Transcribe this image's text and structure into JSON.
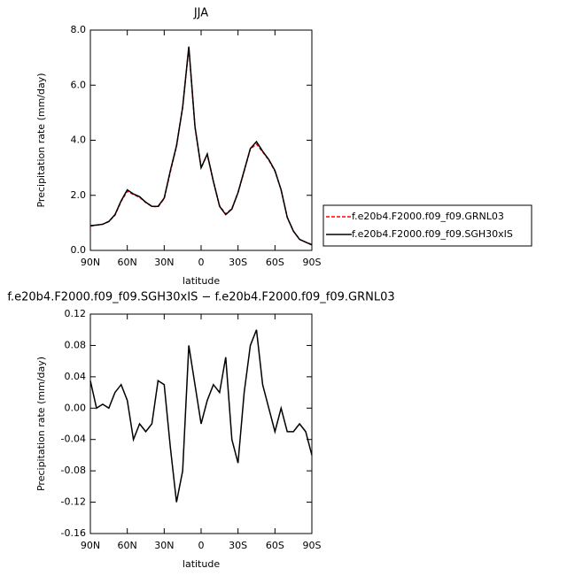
{
  "chart_data": [
    {
      "type": "line",
      "title": "JJA",
      "xlabel": "latitude",
      "ylabel": "Precipitation rate (mm/day)",
      "x": [
        90,
        85,
        80,
        75,
        70,
        65,
        60,
        55,
        50,
        45,
        40,
        35,
        30,
        25,
        20,
        15,
        10,
        5,
        0,
        -5,
        -10,
        -15,
        -20,
        -25,
        -30,
        -35,
        -40,
        -45,
        -50,
        -55,
        -60,
        -65,
        -70,
        -75,
        -80,
        -85,
        -90
      ],
      "series": [
        {
          "name": "f.e20b4.F2000.f09_f09.GRNL03",
          "color": "#ff0000",
          "dash": true,
          "values": [
            0.88,
            0.92,
            0.95,
            1.05,
            1.28,
            1.78,
            2.15,
            2.03,
            1.93,
            1.74,
            1.6,
            1.58,
            1.88,
            2.85,
            3.78,
            5.2,
            7.38,
            4.48,
            3.0,
            3.48,
            2.5,
            1.62,
            1.32,
            1.52,
            2.1,
            2.88,
            3.68,
            3.86,
            3.58,
            3.28,
            2.88,
            2.2,
            1.2,
            0.7,
            0.4,
            0.3,
            0.22
          ]
        },
        {
          "name": "f.e20b4.F2000.f09_f09.SGH30xIS",
          "color": "#000000",
          "dash": false,
          "values": [
            0.9,
            0.92,
            0.95,
            1.05,
            1.3,
            1.8,
            2.2,
            2.05,
            1.95,
            1.75,
            1.6,
            1.6,
            1.9,
            2.9,
            3.8,
            5.2,
            7.4,
            4.5,
            3.0,
            3.5,
            2.5,
            1.6,
            1.3,
            1.5,
            2.1,
            2.9,
            3.7,
            3.95,
            3.6,
            3.3,
            2.9,
            2.2,
            1.2,
            0.7,
            0.4,
            0.3,
            0.2
          ]
        }
      ],
      "xlim": [
        90,
        -90
      ],
      "xticks": [
        {
          "value": 90,
          "label": "90N"
        },
        {
          "value": 60,
          "label": "60N"
        },
        {
          "value": 30,
          "label": "30N"
        },
        0,
        {
          "value": -30,
          "label": "30S"
        },
        {
          "value": -60,
          "label": "60S"
        },
        {
          "value": -90,
          "label": "90S"
        }
      ],
      "ylim": [
        0,
        8
      ],
      "yticks": [
        {
          "value": 0,
          "label": "0.0"
        },
        {
          "value": 2,
          "label": "2.0"
        },
        {
          "value": 4,
          "label": "4.0"
        },
        {
          "value": 6,
          "label": "6.0"
        },
        {
          "value": 8,
          "label": "8.0"
        }
      ]
    },
    {
      "type": "line",
      "title": "f.e20b4.F2000.f09_f09.SGH30xIS − f.e20b4.F2000.f09_f09.GRNL03",
      "xlabel": "latitude",
      "ylabel": "Precipitation rate (mm/day)",
      "x": [
        90,
        85,
        80,
        75,
        70,
        65,
        60,
        55,
        50,
        45,
        40,
        35,
        30,
        25,
        20,
        15,
        10,
        5,
        0,
        -5,
        -10,
        -15,
        -20,
        -25,
        -30,
        -35,
        -40,
        -45,
        -50,
        -55,
        -60,
        -65,
        -70,
        -75,
        -80,
        -85,
        -90
      ],
      "color": "#000000",
      "values": [
        0.035,
        0.0,
        0.005,
        0.0,
        0.02,
        0.03,
        0.01,
        -0.04,
        -0.02,
        -0.03,
        -0.02,
        0.035,
        0.03,
        -0.05,
        -0.12,
        -0.08,
        0.08,
        0.03,
        -0.02,
        0.01,
        0.03,
        0.02,
        0.065,
        -0.04,
        -0.07,
        0.02,
        0.08,
        0.1,
        0.03,
        0.0,
        -0.03,
        0.0,
        -0.03,
        -0.03,
        -0.02,
        -0.03,
        -0.06
      ],
      "xlim": [
        90,
        -90
      ],
      "xticks": [
        {
          "value": 90,
          "label": "90N"
        },
        {
          "value": 60,
          "label": "60N"
        },
        {
          "value": 30,
          "label": "30N"
        },
        0,
        {
          "value": -30,
          "label": "30S"
        },
        {
          "value": -60,
          "label": "60S"
        },
        {
          "value": -90,
          "label": "90S"
        }
      ],
      "ylim": [
        -0.16,
        0.12
      ],
      "yticks": [
        {
          "value": -0.16,
          "label": "-0.16"
        },
        {
          "value": -0.12,
          "label": "-0.12"
        },
        {
          "value": -0.08,
          "label": "-0.08"
        },
        {
          "value": -0.04,
          "label": "-0.04"
        },
        {
          "value": 0,
          "label": "0.00"
        },
        {
          "value": 0.04,
          "label": "0.04"
        },
        {
          "value": 0.08,
          "label": "0.08"
        },
        {
          "value": 0.12,
          "label": "0.12"
        }
      ]
    }
  ]
}
